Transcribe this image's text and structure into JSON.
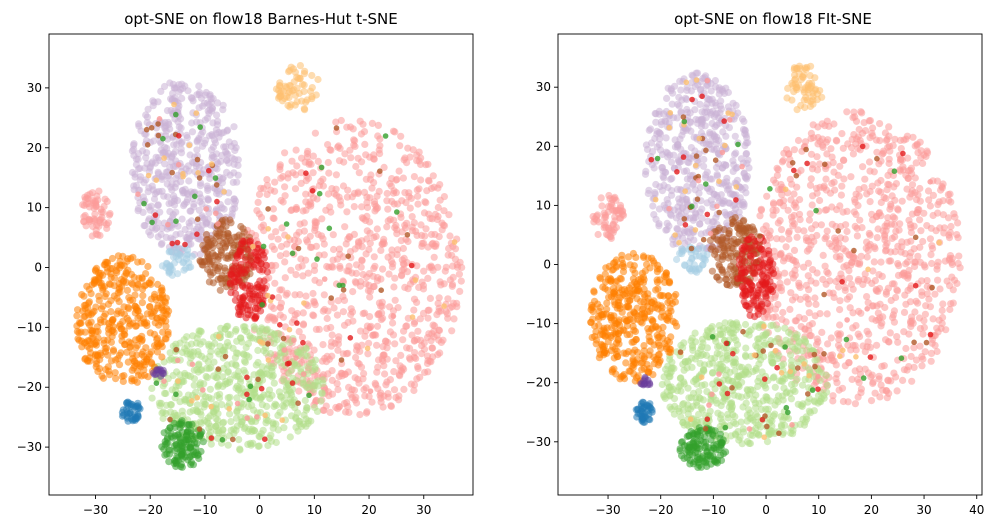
{
  "chart_data": [
    {
      "type": "scatter",
      "title": "opt-SNE on flow18 Barnes-Hut t-SNE",
      "xlabel": "",
      "ylabel": "",
      "xlim": [
        -38.5,
        39
      ],
      "ylim": [
        -38,
        39
      ],
      "xticks": [
        -30,
        -20,
        -10,
        0,
        10,
        20,
        30
      ],
      "yticks": [
        -30,
        -20,
        -10,
        0,
        10,
        20,
        30
      ],
      "grid": false,
      "legend": "none",
      "clusters": [
        {
          "color": "#fb9a99",
          "center": [
            17,
            0
          ],
          "radius": [
            20,
            25
          ],
          "n": 900
        },
        {
          "color": "#cab2d6",
          "center": [
            -13.5,
            16.5
          ],
          "radius": [
            10,
            15
          ],
          "n": 500
        },
        {
          "color": "#b2df8a",
          "center": [
            -4,
            -20
          ],
          "radius": [
            16,
            10.5
          ],
          "n": 560
        },
        {
          "color": "#ff7f00",
          "center": [
            -25,
            -9
          ],
          "radius": [
            8.5,
            11
          ],
          "n": 380
        },
        {
          "color": "#fdbf6f",
          "center": [
            7,
            30
          ],
          "radius": [
            4,
            4
          ],
          "n": 60
        },
        {
          "color": "#b15928",
          "center": [
            -6,
            2
          ],
          "radius": [
            5,
            6
          ],
          "n": 160
        },
        {
          "color": "#e31a1c",
          "center": [
            -2,
            -2
          ],
          "radius": [
            3.5,
            7
          ],
          "n": 130
        },
        {
          "color": "#a6cee3",
          "center": [
            -15,
            1
          ],
          "radius": [
            3,
            2.5
          ],
          "n": 40
        },
        {
          "color": "#33a02c",
          "center": [
            -14,
            -29.5
          ],
          "radius": [
            4,
            4
          ],
          "n": 120
        },
        {
          "color": "#1f78b4",
          "center": [
            -23.5,
            -24
          ],
          "radius": [
            1.8,
            1.8
          ],
          "n": 40
        },
        {
          "color": "#fb9a99",
          "center": [
            -30,
            9
          ],
          "radius": [
            3,
            4
          ],
          "n": 60
        },
        {
          "color": "#6a3d9a",
          "center": [
            -18.5,
            -17.5
          ],
          "radius": [
            1,
            0.8
          ],
          "n": 12
        }
      ],
      "scattered_colors": [
        "#e31a1c",
        "#b15928",
        "#fdbf6f",
        "#33a02c",
        "#fb9a99"
      ]
    },
    {
      "type": "scatter",
      "title": "opt-SNE on flow18 FIt-SNE",
      "xlabel": "",
      "ylabel": "",
      "xlim": [
        -39.5,
        41
      ],
      "ylim": [
        -39,
        39
      ],
      "xticks": [
        -30,
        -20,
        -10,
        0,
        10,
        20,
        30,
        40
      ],
      "yticks": [
        -30,
        -20,
        -10,
        0,
        10,
        20,
        30
      ],
      "grid": false,
      "legend": "none",
      "clusters": [
        {
          "color": "#fb9a99",
          "center": [
            17,
            1
          ],
          "radius": [
            20,
            25
          ],
          "n": 900
        },
        {
          "color": "#cab2d6",
          "center": [
            -13,
            17
          ],
          "radius": [
            10,
            15.5
          ],
          "n": 500
        },
        {
          "color": "#b2df8a",
          "center": [
            -4,
            -20
          ],
          "radius": [
            16,
            10.5
          ],
          "n": 560
        },
        {
          "color": "#ff7f00",
          "center": [
            -25,
            -9
          ],
          "radius": [
            8.5,
            11
          ],
          "n": 380
        },
        {
          "color": "#fdbf6f",
          "center": [
            7,
            30
          ],
          "radius": [
            4,
            4
          ],
          "n": 60
        },
        {
          "color": "#b15928",
          "center": [
            -6,
            2
          ],
          "radius": [
            5,
            6
          ],
          "n": 160
        },
        {
          "color": "#e31a1c",
          "center": [
            -2,
            -2
          ],
          "radius": [
            3.5,
            7
          ],
          "n": 130
        },
        {
          "color": "#a6cee3",
          "center": [
            -14,
            1
          ],
          "radius": [
            3,
            2.5
          ],
          "n": 40
        },
        {
          "color": "#33a02c",
          "center": [
            -12,
            -31
          ],
          "radius": [
            4.5,
            3.5
          ],
          "n": 120
        },
        {
          "color": "#1f78b4",
          "center": [
            -23,
            -25
          ],
          "radius": [
            1.8,
            1.8
          ],
          "n": 40
        },
        {
          "color": "#fb9a99",
          "center": [
            -30,
            8
          ],
          "radius": [
            3,
            4
          ],
          "n": 60
        },
        {
          "color": "#6a3d9a",
          "center": [
            -23,
            -20
          ],
          "radius": [
            1,
            0.9
          ],
          "n": 12
        }
      ],
      "scattered_colors": [
        "#e31a1c",
        "#b15928",
        "#fdbf6f",
        "#33a02c",
        "#fb9a99"
      ]
    }
  ]
}
